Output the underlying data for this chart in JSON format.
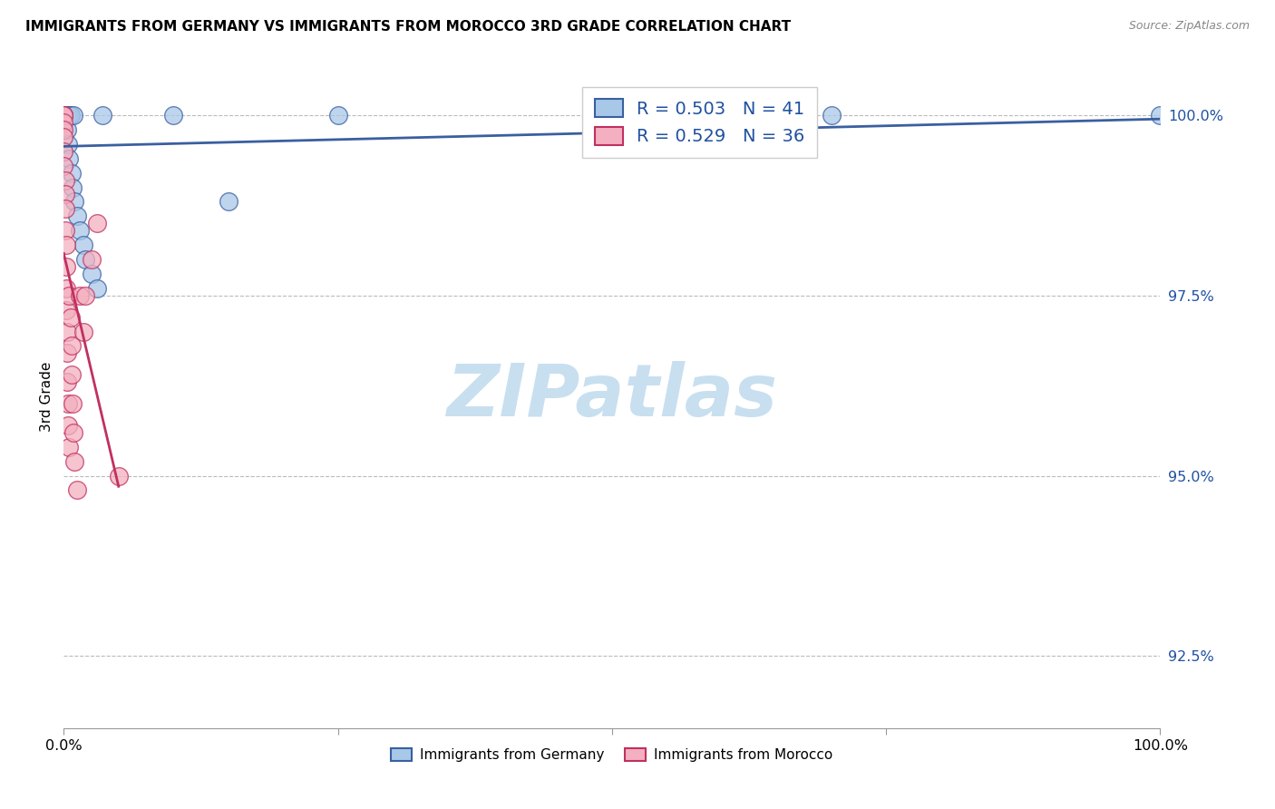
{
  "title": "IMMIGRANTS FROM GERMANY VS IMMIGRANTS FROM MOROCCO 3RD GRADE CORRELATION CHART",
  "source": "Source: ZipAtlas.com",
  "ylabel": "3rd Grade",
  "xlim": [
    0.0,
    1.0
  ],
  "ylim": [
    0.915,
    1.007
  ],
  "y_tick_positions": [
    0.925,
    0.95,
    0.975,
    1.0
  ],
  "legend_germany": "Immigrants from Germany",
  "legend_morocco": "Immigrants from Morocco",
  "r_germany": 0.503,
  "n_germany": 41,
  "r_morocco": 0.529,
  "n_morocco": 36,
  "color_germany": "#a8c8e8",
  "color_morocco": "#f4b0c0",
  "trendline_germany": "#3a5fa0",
  "trendline_morocco": "#c03060",
  "legend_text_color": "#2050a0",
  "watermark_color": "#c8dff0",
  "germany_x": [
    0.0,
    0.0,
    0.0,
    0.0,
    0.0,
    0.001,
    0.001,
    0.001,
    0.001,
    0.001,
    0.001,
    0.001,
    0.002,
    0.002,
    0.002,
    0.002,
    0.003,
    0.003,
    0.003,
    0.003,
    0.004,
    0.004,
    0.005,
    0.005,
    0.006,
    0.007,
    0.008,
    0.009,
    0.01,
    0.012,
    0.015,
    0.018,
    0.02,
    0.025,
    0.03,
    0.035,
    0.1,
    0.15,
    0.25,
    0.7,
    1.0
  ],
  "germany_y": [
    1.0,
    1.0,
    1.0,
    1.0,
    1.0,
    1.0,
    1.0,
    1.0,
    1.0,
    1.0,
    1.0,
    1.0,
    1.0,
    1.0,
    1.0,
    1.0,
    1.0,
    1.0,
    1.0,
    0.998,
    1.0,
    0.996,
    1.0,
    0.994,
    1.0,
    0.992,
    0.99,
    1.0,
    0.988,
    0.986,
    0.984,
    0.982,
    0.98,
    0.978,
    0.976,
    1.0,
    1.0,
    0.988,
    1.0,
    1.0,
    1.0
  ],
  "morocco_x": [
    0.0,
    0.0,
    0.0,
    0.0,
    0.0,
    0.0,
    0.0,
    0.0,
    0.001,
    0.001,
    0.001,
    0.001,
    0.002,
    0.002,
    0.002,
    0.002,
    0.003,
    0.003,
    0.003,
    0.004,
    0.004,
    0.005,
    0.005,
    0.006,
    0.007,
    0.007,
    0.008,
    0.009,
    0.01,
    0.012,
    0.015,
    0.018,
    0.02,
    0.025,
    0.03,
    0.05
  ],
  "morocco_y": [
    1.0,
    1.0,
    1.0,
    0.999,
    0.998,
    0.997,
    0.995,
    0.993,
    0.991,
    0.989,
    0.987,
    0.984,
    0.982,
    0.979,
    0.976,
    0.973,
    0.97,
    0.967,
    0.963,
    0.96,
    0.957,
    0.954,
    0.975,
    0.972,
    0.968,
    0.964,
    0.96,
    0.956,
    0.952,
    0.948,
    0.975,
    0.97,
    0.975,
    0.98,
    0.985,
    0.95
  ]
}
